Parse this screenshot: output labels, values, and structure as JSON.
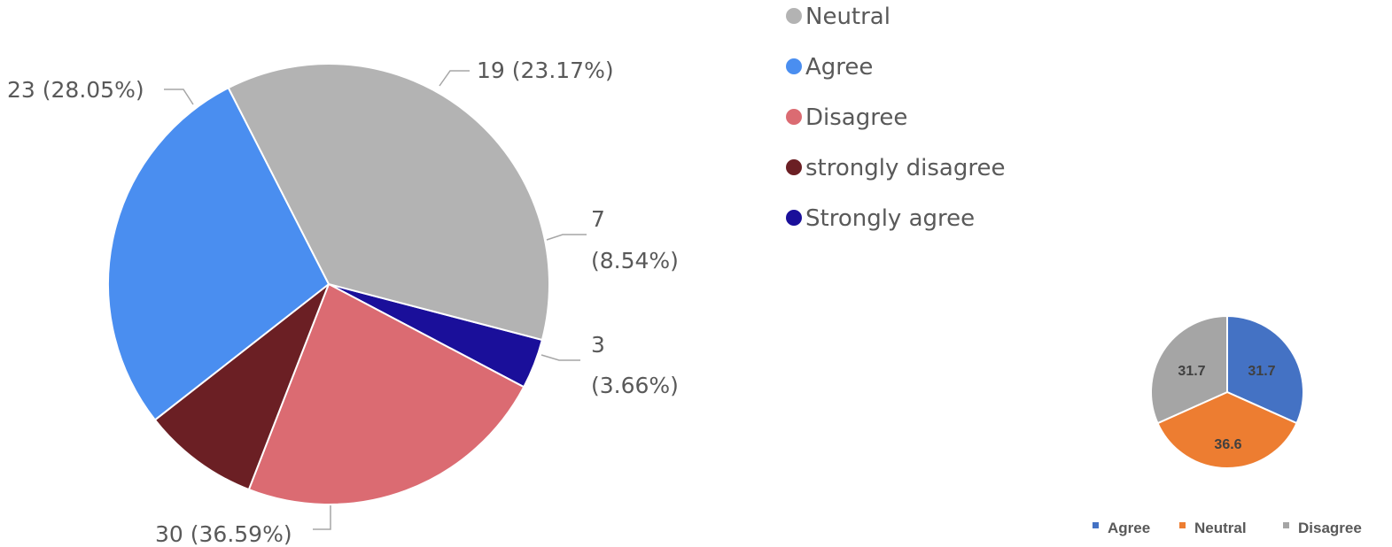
{
  "chart_data": [
    {
      "type": "pie",
      "categories": [
        "Strongly agree",
        "Disagree",
        "strongly disagree",
        "Agree",
        "Neutral"
      ],
      "values": [
        3,
        19,
        7,
        23,
        30
      ],
      "data_labels": [
        "3 (3.66%)",
        "19 (23.17%)",
        "7 (8.54%)",
        "23 (28.05%)",
        "30 (36.59%)"
      ],
      "legend": [
        "Neutral",
        "Agree",
        "Disagree",
        "strongly disagree",
        "Strongly agree"
      ],
      "legend_position": "right",
      "colors": {
        "Neutral": "#b3b3b3",
        "Agree": "#4a8ef0",
        "Disagree": "#db6b72",
        "strongly disagree": "#6b1f24",
        "Strongly agree": "#1a0f9a"
      }
    },
    {
      "type": "pie",
      "categories": [
        "Agree",
        "Neutral",
        "Disagree"
      ],
      "values": [
        31.7,
        36.6,
        31.7
      ],
      "data_labels": [
        "31.7",
        "36.6",
        "31.7"
      ],
      "legend": [
        "Agree",
        "Neutral",
        "Disagree"
      ],
      "legend_position": "bottom",
      "colors": {
        "Agree": "#4472c4",
        "Neutral": "#ed7d31",
        "Disagree": "#a5a5a5"
      }
    }
  ]
}
